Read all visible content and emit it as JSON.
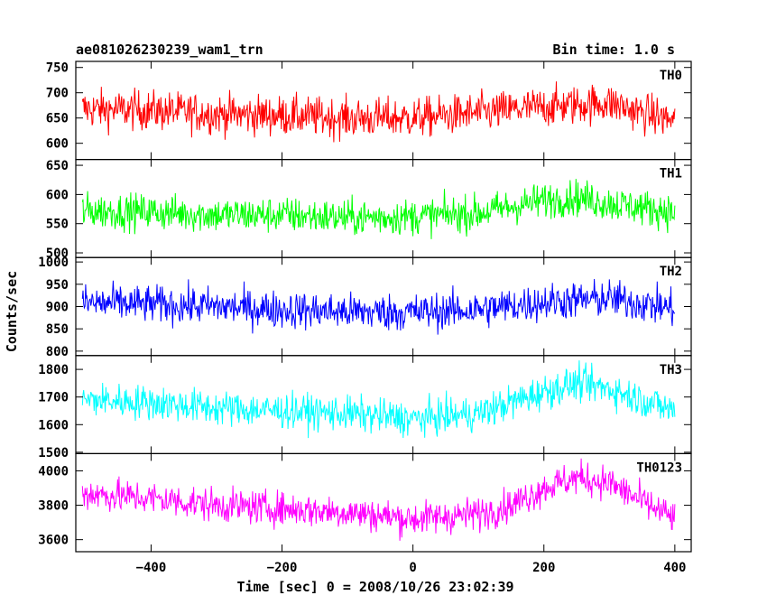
{
  "header": {
    "title": "ae081026230239_wam1_trn",
    "bin_time": "Bin time: 1.0 s"
  },
  "ylabel": "Counts/sec",
  "xlabel": "Time [sec] 0 = 2008/10/26 23:02:39",
  "chart_data": {
    "type": "line",
    "xlim": [
      -515,
      425
    ],
    "x_ticks": [
      -400,
      -200,
      0,
      200,
      400
    ],
    "x_tick_labels": [
      "−400",
      "−200",
      "0",
      "200",
      "400"
    ],
    "x_range_data": [
      -505,
      400
    ],
    "panels": [
      {
        "name": "TH0",
        "color": "#ff0000",
        "ylim": [
          568,
          762
        ],
        "y_ticks": [
          600,
          650,
          700,
          750
        ],
        "y_tick_labels": [
          "600",
          "650",
          "700",
          "750"
        ],
        "baseline": [
          [
            -505,
            668
          ],
          [
            -400,
            665
          ],
          [
            -300,
            658
          ],
          [
            -200,
            655
          ],
          [
            -100,
            650
          ],
          [
            0,
            650
          ],
          [
            100,
            660
          ],
          [
            200,
            672
          ],
          [
            300,
            680
          ],
          [
            350,
            660
          ],
          [
            400,
            645
          ]
        ],
        "noise": 28
      },
      {
        "name": "TH1",
        "color": "#00ff00",
        "ylim": [
          492,
          660
        ],
        "y_ticks": [
          500,
          550,
          600,
          650
        ],
        "y_tick_labels": [
          "500",
          "550",
          "600",
          "650"
        ],
        "baseline": [
          [
            -505,
            572
          ],
          [
            -400,
            570
          ],
          [
            -300,
            565
          ],
          [
            -200,
            565
          ],
          [
            -100,
            560
          ],
          [
            0,
            562
          ],
          [
            100,
            568
          ],
          [
            200,
            590
          ],
          [
            250,
            595
          ],
          [
            300,
            585
          ],
          [
            400,
            570
          ]
        ],
        "noise": 22
      },
      {
        "name": "TH2",
        "color": "#0000ff",
        "ylim": [
          790,
          1010
        ],
        "y_ticks": [
          800,
          850,
          900,
          950,
          1000
        ],
        "y_tick_labels": [
          "800",
          "850",
          "900",
          "950",
          "1000"
        ],
        "baseline": [
          [
            -505,
            908
          ],
          [
            -400,
            905
          ],
          [
            -300,
            900
          ],
          [
            -200,
            893
          ],
          [
            -100,
            888
          ],
          [
            0,
            887
          ],
          [
            100,
            893
          ],
          [
            200,
            910
          ],
          [
            300,
            918
          ],
          [
            400,
            895
          ]
        ],
        "noise": 30
      },
      {
        "name": "TH3",
        "color": "#00ffff",
        "ylim": [
          1495,
          1850
        ],
        "y_ticks": [
          1500,
          1600,
          1700,
          1800
        ],
        "y_tick_labels": [
          "1500",
          "1600",
          "1700",
          "1800"
        ],
        "baseline": [
          [
            -505,
            1690
          ],
          [
            -400,
            1680
          ],
          [
            -300,
            1660
          ],
          [
            -200,
            1650
          ],
          [
            -100,
            1640
          ],
          [
            0,
            1620
          ],
          [
            100,
            1640
          ],
          [
            150,
            1680
          ],
          [
            200,
            1720
          ],
          [
            250,
            1750
          ],
          [
            300,
            1730
          ],
          [
            350,
            1690
          ],
          [
            400,
            1650
          ]
        ],
        "noise": 45
      },
      {
        "name": "TH0123",
        "color": "#ff00ff",
        "ylim": [
          3530,
          4100
        ],
        "y_ticks": [
          3600,
          3800,
          4000
        ],
        "y_tick_labels": [
          "3600",
          "3800",
          "4000"
        ],
        "baseline": [
          [
            -505,
            3870
          ],
          [
            -400,
            3840
          ],
          [
            -300,
            3800
          ],
          [
            -200,
            3780
          ],
          [
            -100,
            3760
          ],
          [
            0,
            3720
          ],
          [
            100,
            3750
          ],
          [
            150,
            3800
          ],
          [
            200,
            3900
          ],
          [
            250,
            3960
          ],
          [
            300,
            3930
          ],
          [
            350,
            3820
          ],
          [
            400,
            3720
          ]
        ],
        "noise": 70
      }
    ]
  }
}
